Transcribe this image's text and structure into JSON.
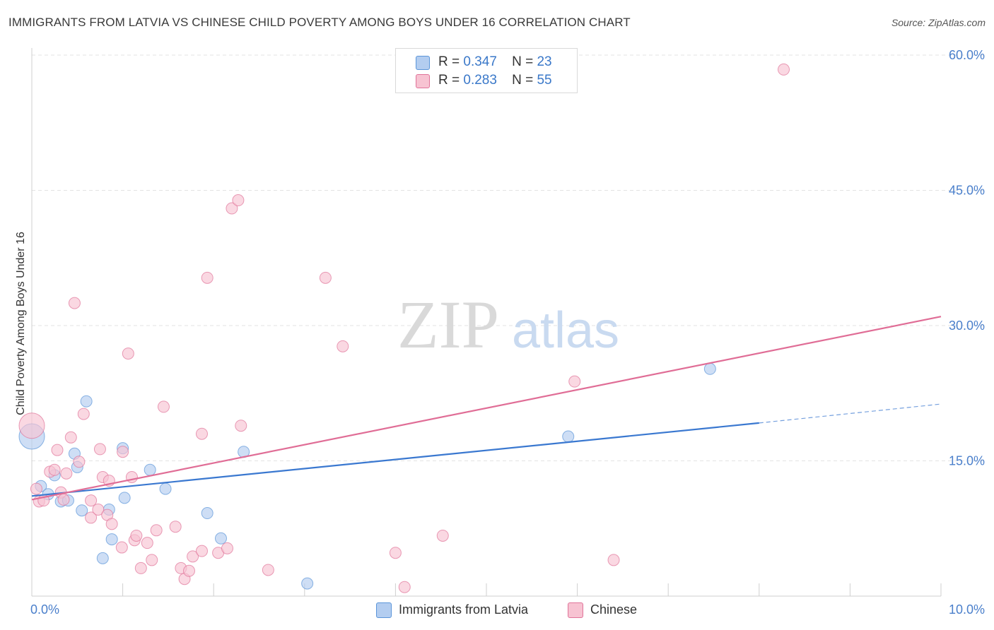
{
  "title": "IMMIGRANTS FROM LATVIA VS CHINESE CHILD POVERTY AMONG BOYS UNDER 16 CORRELATION CHART",
  "source": "Source: ZipAtlas.com",
  "watermark": {
    "zip": "ZIP",
    "atlas": "atlas"
  },
  "legend": {
    "r_label": "R =",
    "n_label": "N =",
    "rows": [
      {
        "r": "0.347",
        "n": "23"
      },
      {
        "r": "0.283",
        "n": "55"
      }
    ]
  },
  "chart_data": {
    "type": "scatter",
    "title": "IMMIGRANTS FROM LATVIA VS CHINESE CHILD POVERTY AMONG BOYS UNDER 16 CORRELATION CHART",
    "xlabel": "",
    "ylabel": "Child Poverty Among Boys Under 16",
    "xlim": [
      0,
      10
    ],
    "ylim": [
      0,
      60
    ],
    "x_tick_labels": [
      {
        "value": 0,
        "label": "0.0%"
      },
      {
        "value": 10,
        "label": "10.0%"
      }
    ],
    "y_tick_labels": [
      {
        "value": 15,
        "label": "15.0%"
      },
      {
        "value": 30,
        "label": "30.0%"
      },
      {
        "value": 45,
        "label": "45.0%"
      },
      {
        "value": 60,
        "label": "60.0%"
      }
    ],
    "grid": true,
    "legend_position": "top-center",
    "series": [
      {
        "name": "Immigrants from Latvia",
        "color": "#5b95d9",
        "fill": "#b3cdf0",
        "R": 0.347,
        "N": 23,
        "points": [
          [
            0.0,
            17.7
          ],
          [
            0.1,
            12.2
          ],
          [
            0.18,
            11.3
          ],
          [
            0.25,
            13.4
          ],
          [
            0.32,
            10.5
          ],
          [
            0.4,
            10.6
          ],
          [
            0.47,
            15.8
          ],
          [
            0.5,
            14.3
          ],
          [
            0.55,
            9.5
          ],
          [
            0.6,
            21.6
          ],
          [
            0.78,
            4.2
          ],
          [
            0.85,
            9.6
          ],
          [
            0.88,
            6.3
          ],
          [
            1.0,
            16.4
          ],
          [
            1.02,
            10.9
          ],
          [
            1.3,
            14.0
          ],
          [
            1.47,
            11.9
          ],
          [
            1.93,
            9.2
          ],
          [
            2.08,
            6.4
          ],
          [
            2.33,
            16.0
          ],
          [
            3.03,
            1.4
          ],
          [
            5.9,
            17.7
          ],
          [
            7.46,
            25.2
          ]
        ],
        "trend": {
          "x0": 0,
          "y0": 11.1,
          "x1": 8,
          "y1": 19.2,
          "dashed_to_x": 10,
          "dashed_to_y": 21.3
        }
      },
      {
        "name": "Chinese",
        "color": "#e07399",
        "fill": "#f7c3d2",
        "R": 0.283,
        "N": 55,
        "points": [
          [
            0.0,
            18.9
          ],
          [
            0.08,
            10.5
          ],
          [
            0.13,
            10.6
          ],
          [
            0.2,
            13.8
          ],
          [
            0.25,
            14.0
          ],
          [
            0.28,
            16.2
          ],
          [
            0.32,
            11.5
          ],
          [
            0.35,
            10.7
          ],
          [
            0.38,
            13.6
          ],
          [
            0.43,
            17.6
          ],
          [
            0.47,
            32.5
          ],
          [
            0.52,
            14.9
          ],
          [
            0.57,
            20.2
          ],
          [
            0.65,
            10.6
          ],
          [
            0.65,
            8.7
          ],
          [
            0.73,
            9.6
          ],
          [
            0.75,
            16.3
          ],
          [
            0.78,
            13.2
          ],
          [
            0.83,
            9.0
          ],
          [
            0.85,
            12.8
          ],
          [
            0.88,
            8.0
          ],
          [
            0.99,
            5.4
          ],
          [
            1.0,
            16.0
          ],
          [
            1.06,
            26.9
          ],
          [
            1.1,
            13.2
          ],
          [
            1.13,
            6.2
          ],
          [
            1.15,
            6.7
          ],
          [
            1.2,
            3.1
          ],
          [
            1.27,
            5.9
          ],
          [
            1.32,
            4.0
          ],
          [
            1.37,
            7.3
          ],
          [
            1.45,
            21.0
          ],
          [
            1.58,
            7.7
          ],
          [
            1.64,
            3.1
          ],
          [
            1.68,
            1.9
          ],
          [
            1.73,
            2.8
          ],
          [
            1.77,
            4.4
          ],
          [
            1.87,
            5.0
          ],
          [
            1.87,
            18.0
          ],
          [
            1.93,
            35.3
          ],
          [
            2.05,
            4.8
          ],
          [
            2.15,
            5.3
          ],
          [
            2.2,
            43.0
          ],
          [
            2.27,
            43.9
          ],
          [
            2.3,
            18.9
          ],
          [
            2.6,
            2.9
          ],
          [
            3.23,
            35.3
          ],
          [
            3.42,
            27.7
          ],
          [
            4.0,
            4.8
          ],
          [
            4.1,
            1.0
          ],
          [
            4.52,
            6.7
          ],
          [
            5.97,
            23.8
          ],
          [
            6.4,
            4.0
          ],
          [
            8.27,
            58.4
          ],
          [
            0.05,
            11.9
          ]
        ],
        "trend": {
          "x0": 0,
          "y0": 10.7,
          "x1": 10,
          "y1": 31.0
        }
      }
    ]
  }
}
